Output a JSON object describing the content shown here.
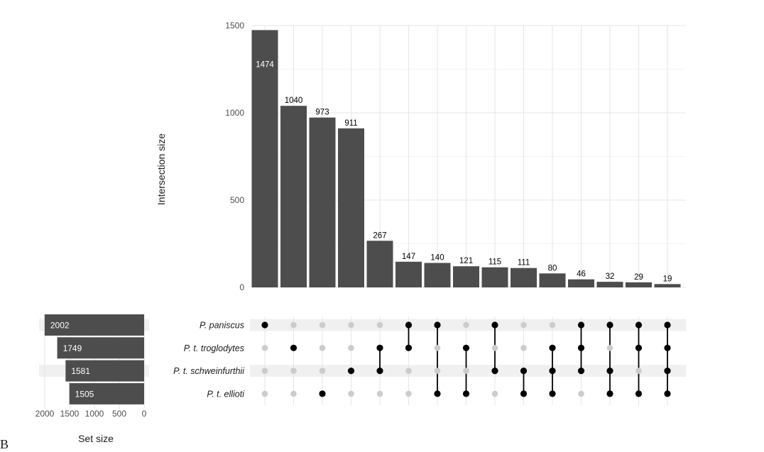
{
  "panel_tag": "B",
  "chart_data": {
    "type": "upset",
    "ylabel": "Intersection size",
    "xlabel_sets": "Set size",
    "ylim": [
      0,
      1500
    ],
    "yticks": [
      0,
      500,
      1000,
      1500
    ],
    "set_size_ticks": [
      2000,
      1500,
      1000,
      500,
      0
    ],
    "colors": {
      "bar": "#4d4d4d",
      "dot_on": "#000000",
      "dot_off": "#cccccc",
      "stripe": "#f0f0f0",
      "label_in": "#ffffff",
      "label_out": "#000000"
    },
    "sets": [
      {
        "name": "P. paniscus",
        "size": 2002
      },
      {
        "name": "P. t. troglodytes",
        "size": 1749
      },
      {
        "name": "P. t. schweinfurthii",
        "size": 1581
      },
      {
        "name": "P. t. ellioti",
        "size": 1505
      }
    ],
    "intersections": [
      {
        "value": 1474,
        "members": [
          0
        ]
      },
      {
        "value": 1040,
        "members": [
          1
        ]
      },
      {
        "value": 973,
        "members": [
          3
        ]
      },
      {
        "value": 911,
        "members": [
          2
        ]
      },
      {
        "value": 267,
        "members": [
          1,
          2
        ]
      },
      {
        "value": 147,
        "members": [
          0,
          1
        ]
      },
      {
        "value": 140,
        "members": [
          0,
          3
        ]
      },
      {
        "value": 121,
        "members": [
          1,
          3
        ]
      },
      {
        "value": 115,
        "members": [
          0,
          2
        ]
      },
      {
        "value": 111,
        "members": [
          2,
          3
        ]
      },
      {
        "value": 80,
        "members": [
          1,
          2,
          3
        ]
      },
      {
        "value": 46,
        "members": [
          0,
          1,
          2
        ]
      },
      {
        "value": 32,
        "members": [
          0,
          2,
          3
        ]
      },
      {
        "value": 29,
        "members": [
          0,
          1,
          3
        ]
      },
      {
        "value": 19,
        "members": [
          0,
          1,
          2,
          3
        ]
      }
    ]
  }
}
